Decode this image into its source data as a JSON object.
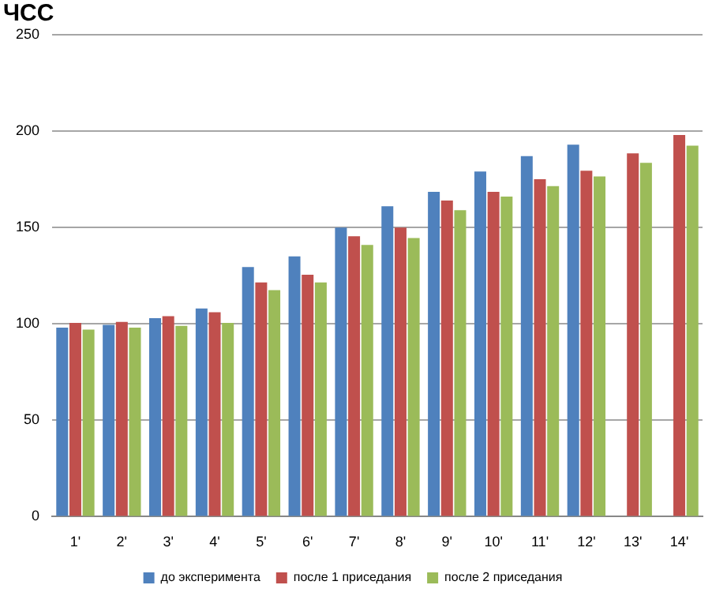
{
  "chart_data": {
    "type": "bar",
    "title": "ЧСС",
    "categories": [
      "1'",
      "2'",
      "3'",
      "4'",
      "5'",
      "6'",
      "7'",
      "8'",
      "9'",
      "10'",
      "11'",
      "12'",
      "13'",
      "14'"
    ],
    "series": [
      {
        "name": "до эксперимента",
        "color": "#4f81bd",
        "values": [
          98,
          99.5,
          103,
          108,
          129.5,
          135,
          150,
          161,
          168.5,
          179,
          187,
          193,
          null,
          null
        ]
      },
      {
        "name": "после 1 приседания",
        "color": "#c0504d",
        "values": [
          100.5,
          101,
          104,
          106,
          121.5,
          125.5,
          145.5,
          150,
          164,
          168.5,
          175,
          179.5,
          188.5,
          198
        ]
      },
      {
        "name": "после 2 приседания",
        "color": "#9bbb59",
        "values": [
          97,
          98,
          99,
          100.5,
          117.5,
          121.5,
          141,
          144.5,
          159,
          166,
          171.5,
          176.5,
          183.5,
          192.5
        ]
      }
    ],
    "ylim": [
      0,
      250
    ],
    "yticks": [
      0,
      50,
      100,
      150,
      200,
      250
    ],
    "grid": "y",
    "legend": "bottom"
  }
}
